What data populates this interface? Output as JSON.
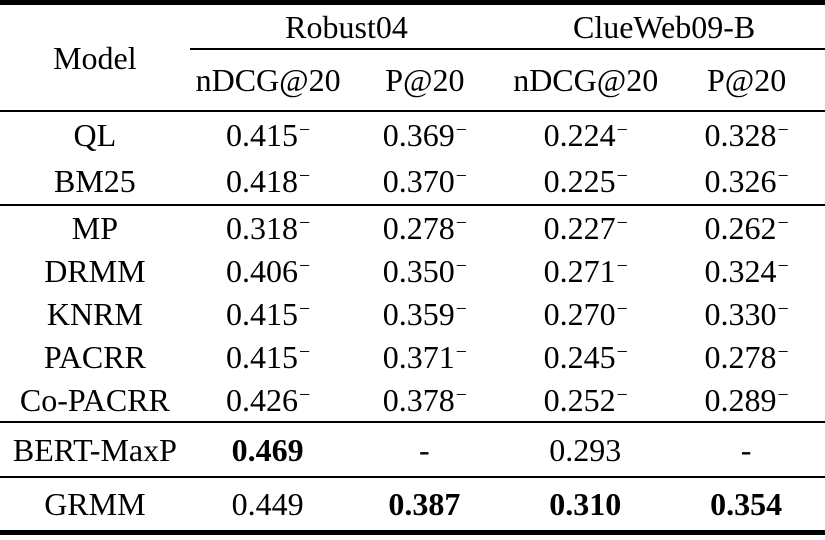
{
  "table": {
    "header": {
      "model_label": "Model",
      "groups": [
        {
          "label": "Robust04"
        },
        {
          "label": "ClueWeb09-B"
        }
      ],
      "metrics": [
        "nDCG@20",
        "P@20",
        "nDCG@20",
        "P@20"
      ]
    },
    "sections": [
      {
        "name": "baselines",
        "rows": [
          {
            "model": "QL",
            "cells": [
              {
                "text": "0.415",
                "sup": "−",
                "bold": false
              },
              {
                "text": "0.369",
                "sup": "−",
                "bold": false
              },
              {
                "text": "0.224",
                "sup": "−",
                "bold": false
              },
              {
                "text": "0.328",
                "sup": "−",
                "bold": false
              }
            ]
          },
          {
            "model": "BM25",
            "cells": [
              {
                "text": "0.418",
                "sup": "−",
                "bold": false
              },
              {
                "text": "0.370",
                "sup": "−",
                "bold": false
              },
              {
                "text": "0.225",
                "sup": "−",
                "bold": false
              },
              {
                "text": "0.326",
                "sup": "−",
                "bold": false
              }
            ]
          }
        ]
      },
      {
        "name": "neural",
        "rows": [
          {
            "model": "MP",
            "cells": [
              {
                "text": "0.318",
                "sup": "−",
                "bold": false
              },
              {
                "text": "0.278",
                "sup": "−",
                "bold": false
              },
              {
                "text": "0.227",
                "sup": "−",
                "bold": false
              },
              {
                "text": "0.262",
                "sup": "−",
                "bold": false
              }
            ]
          },
          {
            "model": "DRMM",
            "cells": [
              {
                "text": "0.406",
                "sup": "−",
                "bold": false
              },
              {
                "text": "0.350",
                "sup": "−",
                "bold": false
              },
              {
                "text": "0.271",
                "sup": "−",
                "bold": false
              },
              {
                "text": "0.324",
                "sup": "−",
                "bold": false
              }
            ]
          },
          {
            "model": "KNRM",
            "cells": [
              {
                "text": "0.415",
                "sup": "−",
                "bold": false
              },
              {
                "text": "0.359",
                "sup": "−",
                "bold": false
              },
              {
                "text": "0.270",
                "sup": "−",
                "bold": false
              },
              {
                "text": "0.330",
                "sup": "−",
                "bold": false
              }
            ]
          },
          {
            "model": "PACRR",
            "cells": [
              {
                "text": "0.415",
                "sup": "−",
                "bold": false
              },
              {
                "text": "0.371",
                "sup": "−",
                "bold": false
              },
              {
                "text": "0.245",
                "sup": "−",
                "bold": false
              },
              {
                "text": "0.278",
                "sup": "−",
                "bold": false
              }
            ]
          },
          {
            "model": "Co-PACRR",
            "cells": [
              {
                "text": "0.426",
                "sup": "−",
                "bold": false
              },
              {
                "text": "0.378",
                "sup": "−",
                "bold": false
              },
              {
                "text": "0.252",
                "sup": "−",
                "bold": false
              },
              {
                "text": "0.289",
                "sup": "−",
                "bold": false
              }
            ]
          }
        ]
      },
      {
        "name": "bert",
        "rows": [
          {
            "model": "BERT-MaxP",
            "cells": [
              {
                "text": "0.469",
                "sup": "",
                "bold": true
              },
              {
                "text": "-",
                "sup": "",
                "bold": false
              },
              {
                "text": "0.293",
                "sup": "",
                "bold": false
              },
              {
                "text": "-",
                "sup": "",
                "bold": false
              }
            ]
          }
        ]
      },
      {
        "name": "ours",
        "rows": [
          {
            "model": "GRMM",
            "cells": [
              {
                "text": "0.449",
                "sup": "",
                "bold": false
              },
              {
                "text": "0.387",
                "sup": "",
                "bold": true
              },
              {
                "text": "0.310",
                "sup": "",
                "bold": true
              },
              {
                "text": "0.354",
                "sup": "",
                "bold": true
              }
            ]
          }
        ]
      }
    ]
  },
  "chart_data": {
    "type": "table",
    "column_groups": [
      "Robust04",
      "ClueWeb09-B"
    ],
    "columns": [
      "Model",
      "Robust04 nDCG@20",
      "Robust04 P@20",
      "ClueWeb09-B nDCG@20",
      "ClueWeb09-B P@20"
    ],
    "rows": [
      [
        "QL",
        "0.415−",
        "0.369−",
        "0.224−",
        "0.328−"
      ],
      [
        "BM25",
        "0.418−",
        "0.370−",
        "0.225−",
        "0.326−"
      ],
      [
        "MP",
        "0.318−",
        "0.278−",
        "0.227−",
        "0.262−"
      ],
      [
        "DRMM",
        "0.406−",
        "0.350−",
        "0.271−",
        "0.324−"
      ],
      [
        "KNRM",
        "0.415−",
        "0.359−",
        "0.270−",
        "0.330−"
      ],
      [
        "PACRR",
        "0.415−",
        "0.371−",
        "0.245−",
        "0.278−"
      ],
      [
        "Co-PACRR",
        "0.426−",
        "0.378−",
        "0.252−",
        "0.289−"
      ],
      [
        "BERT-MaxP",
        "0.469",
        "-",
        "0.293",
        "-"
      ],
      [
        "GRMM",
        "0.449",
        "0.387",
        "0.310",
        "0.354"
      ]
    ],
    "bold_cells": [
      [
        "BERT-MaxP",
        "Robust04 nDCG@20"
      ],
      [
        "GRMM",
        "Robust04 P@20"
      ],
      [
        "GRMM",
        "ClueWeb09-B nDCG@20"
      ],
      [
        "GRMM",
        "ClueWeb09-B P@20"
      ]
    ]
  }
}
